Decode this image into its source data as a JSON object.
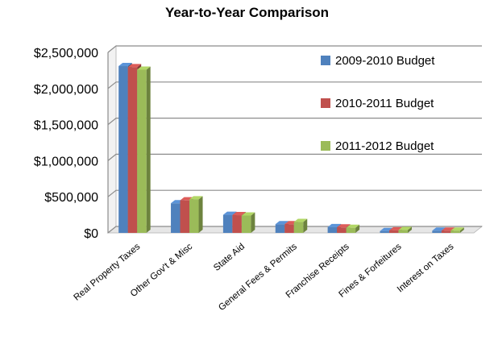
{
  "chart_data": {
    "type": "bar",
    "title": "Year-to-Year Comparison",
    "xlabel": "",
    "ylabel": "",
    "categories": [
      "Real Property Taxes",
      "Other Gov't & Misc",
      "State Aid",
      "General Fees & Permits",
      "Franchise Receipts",
      "Fines & Forfeitures",
      "Interest on Taxes"
    ],
    "series": [
      {
        "name": "2009-2010 Budget",
        "color": "#4f81bd",
        "values": [
          2310000,
          410000,
          250000,
          120000,
          80000,
          25000,
          30000
        ]
      },
      {
        "name": "2010-2011 Budget",
        "color": "#c0504d",
        "values": [
          2295000,
          450000,
          245000,
          120000,
          75000,
          35000,
          30000
        ]
      },
      {
        "name": "2011-2012 Budget",
        "color": "#9bbb59",
        "values": [
          2260000,
          465000,
          240000,
          150000,
          70000,
          40000,
          30000
        ]
      }
    ],
    "ylim": [
      0,
      2500000
    ],
    "yticks": [
      "$0",
      "$500,000",
      "$1,000,000",
      "$1,500,000",
      "$2,000,000",
      "$2,500,000"
    ],
    "grid": true,
    "legend": "right-inside",
    "style": "3d-clustered-column"
  }
}
